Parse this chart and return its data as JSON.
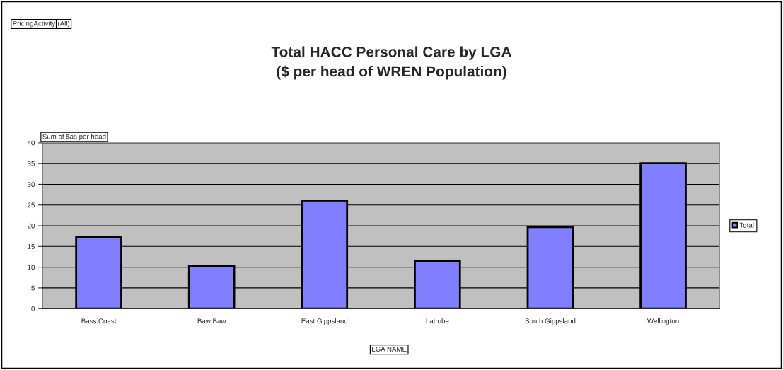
{
  "chart_data": {
    "type": "bar",
    "title": "Total HACC Personal Care by LGA\n($ per head of WREN Population)",
    "xlabel": "LGA NAME",
    "ylabel": "Sum of $as per head",
    "annotations": [
      "PricingActivity",
      "(All)"
    ],
    "categories": [
      "Bass Coast",
      "Baw Baw",
      "East Gippsland",
      "Latrobe",
      "South Gippsland",
      "Wellington"
    ],
    "series": [
      {
        "name": "Total",
        "color": "#8080ff",
        "values": [
          17.3,
          10.3,
          26.1,
          11.5,
          19.7,
          35.1
        ]
      }
    ],
    "ylim": [
      0,
      40
    ],
    "yticks": [
      0,
      5,
      10,
      15,
      20,
      25,
      30,
      35,
      40
    ],
    "grid": "y",
    "legend": "right"
  }
}
